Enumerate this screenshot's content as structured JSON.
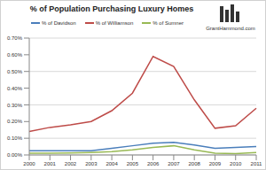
{
  "chart_data": {
    "type": "line",
    "title": "% of Population Purchasing Luxury Homes",
    "annotations": [
      "GrantHammond.com"
    ],
    "categories": [
      "2000",
      "2001",
      "2002",
      "2003",
      "2004",
      "2005",
      "2006",
      "2007",
      "2008",
      "2009",
      "2010",
      "2011"
    ],
    "series": [
      {
        "name": "% of Davidson",
        "color": "#4a7ebb",
        "values": [
          0.025,
          0.025,
          0.025,
          0.025,
          0.04,
          0.055,
          0.07,
          0.075,
          0.06,
          0.04,
          0.045,
          0.05
        ]
      },
      {
        "name": "% of Williamson",
        "color": "#be4b48",
        "values": [
          0.14,
          0.165,
          0.18,
          0.2,
          0.265,
          0.37,
          0.59,
          0.53,
          0.33,
          0.16,
          0.175,
          0.28
        ]
      },
      {
        "name": "% of Sumner",
        "color": "#98b954",
        "values": [
          0.01,
          0.01,
          0.012,
          0.015,
          0.02,
          0.03,
          0.045,
          0.055,
          0.03,
          0.01,
          0.008,
          0.015
        ]
      }
    ],
    "ylim": [
      0,
      0.7
    ],
    "yticks": [
      {
        "value": 0,
        "label": "0.00%"
      },
      {
        "value": 0.1,
        "label": "0.10%"
      },
      {
        "value": 0.2,
        "label": "0.20%"
      },
      {
        "value": 0.3,
        "label": "0.30%"
      },
      {
        "value": 0.4,
        "label": "0.40%"
      },
      {
        "value": 0.5,
        "label": "0.50%"
      },
      {
        "value": 0.6,
        "label": "0.60%"
      },
      {
        "value": 0.7,
        "label": "0.70%"
      }
    ],
    "grid": true,
    "legend": "top"
  }
}
